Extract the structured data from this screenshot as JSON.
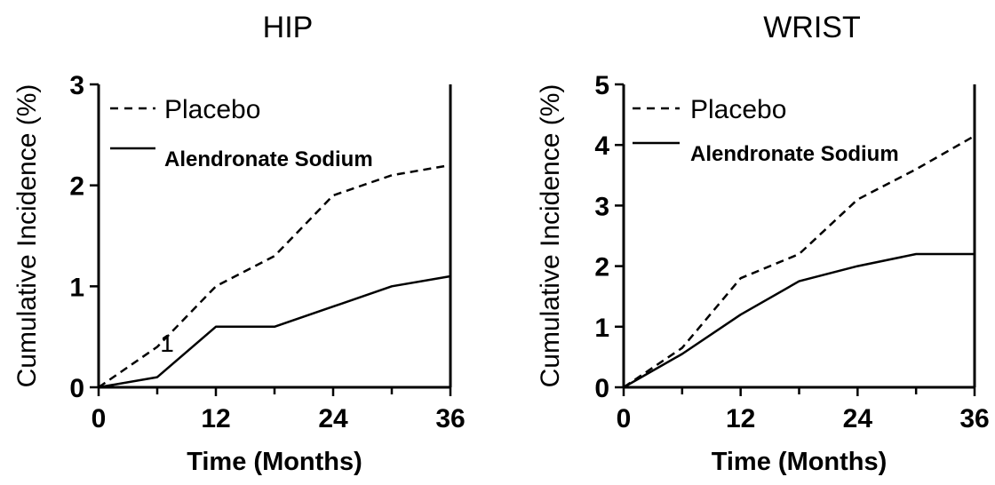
{
  "chart_data": [
    {
      "type": "line",
      "title": "HIP",
      "xlabel": "Time (Months)",
      "ylabel": "Cumulative Incidence (%)",
      "xlim": [
        0,
        36
      ],
      "ylim": [
        0,
        3
      ],
      "xticks": [
        "0",
        "12",
        "24",
        "36"
      ],
      "yticks": [
        "0",
        "1",
        "2",
        "3"
      ],
      "grid": false,
      "legend_position": "top-left",
      "annotation": "1",
      "series": [
        {
          "name": "Placebo",
          "style": "dashed",
          "x": [
            0,
            6,
            12,
            18,
            24,
            30,
            36
          ],
          "y": [
            0,
            0.4,
            1.0,
            1.3,
            1.9,
            2.1,
            2.2
          ]
        },
        {
          "name": "Alendronate Sodium",
          "style": "solid",
          "x": [
            0,
            6,
            12,
            18,
            24,
            30,
            36
          ],
          "y": [
            0,
            0.1,
            0.6,
            0.6,
            0.8,
            1.0,
            1.1
          ]
        }
      ]
    },
    {
      "type": "line",
      "title": "WRIST",
      "xlabel": "Time (Months)",
      "ylabel": "Cumulative Incidence (%)",
      "xlim": [
        0,
        36
      ],
      "ylim": [
        0,
        5
      ],
      "xticks": [
        "0",
        "12",
        "24",
        "36"
      ],
      "yticks": [
        "0",
        "1",
        "2",
        "3",
        "4",
        "5"
      ],
      "grid": false,
      "legend_position": "top-left",
      "series": [
        {
          "name": "Placebo",
          "style": "dashed",
          "x": [
            0,
            6,
            12,
            18,
            24,
            30,
            36
          ],
          "y": [
            0,
            0.65,
            1.8,
            2.2,
            3.1,
            3.6,
            4.15
          ]
        },
        {
          "name": "Alendronate Sodium",
          "style": "solid",
          "x": [
            0,
            6,
            12,
            18,
            24,
            30,
            36
          ],
          "y": [
            0,
            0.55,
            1.2,
            1.75,
            2.0,
            2.2,
            2.2
          ]
        }
      ]
    }
  ]
}
